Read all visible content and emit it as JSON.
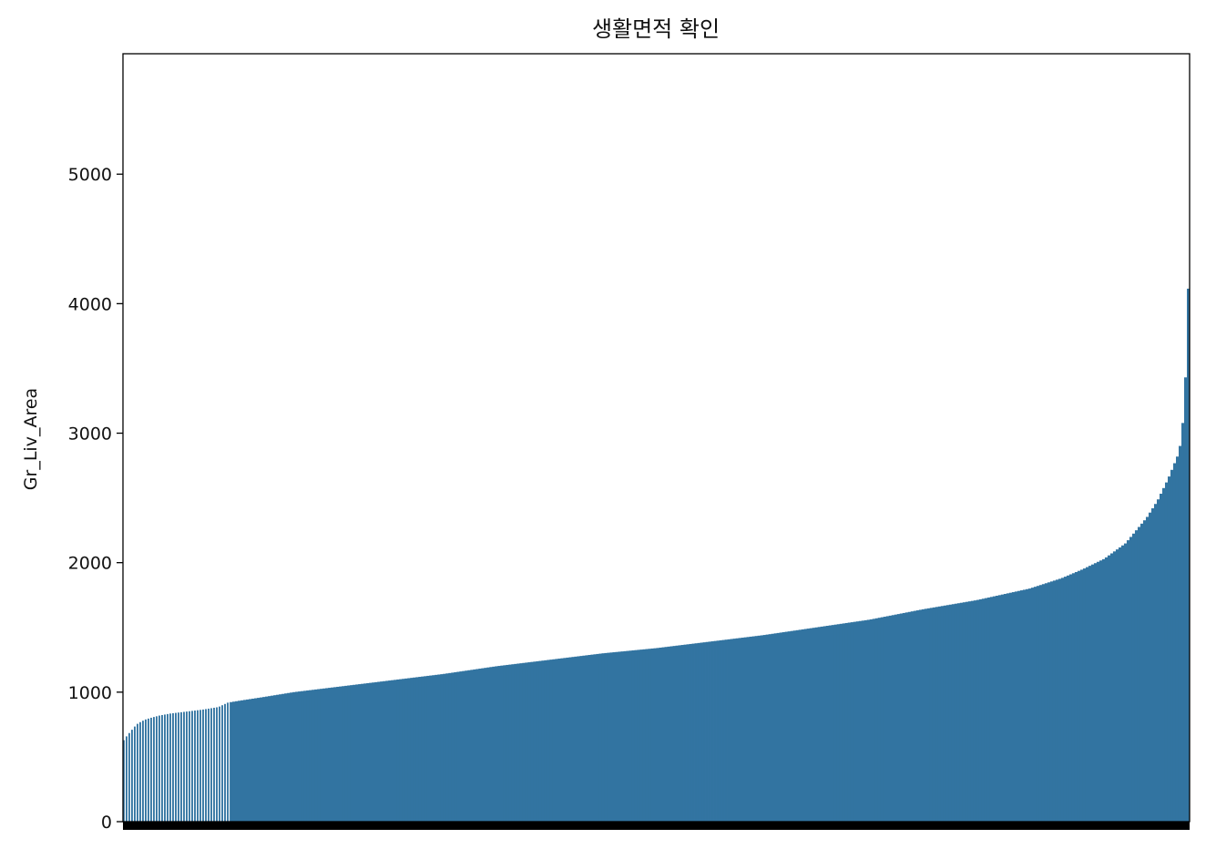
{
  "chart_data": {
    "type": "bar",
    "title": "생활면적 확인",
    "xlabel": "",
    "ylabel": "Gr_Liv_Area",
    "ylim": [
      0,
      5930
    ],
    "yticks": [
      0,
      1000,
      2000,
      3000,
      4000,
      5000
    ],
    "bar_color": "#3274a1",
    "sorted": "ascending",
    "xtick_labels_visible": false,
    "grid": false,
    "legend": "none",
    "profile": [
      [
        0.0,
        610
      ],
      [
        0.002,
        640
      ],
      [
        0.005,
        670
      ],
      [
        0.008,
        700
      ],
      [
        0.011,
        730
      ],
      [
        0.014,
        755
      ],
      [
        0.018,
        775
      ],
      [
        0.022,
        790
      ],
      [
        0.028,
        805
      ],
      [
        0.035,
        820
      ],
      [
        0.045,
        835
      ],
      [
        0.06,
        850
      ],
      [
        0.075,
        865
      ],
      [
        0.09,
        885
      ],
      [
        0.099,
        920
      ],
      [
        0.11,
        935
      ],
      [
        0.13,
        960
      ],
      [
        0.16,
        1000
      ],
      [
        0.2,
        1040
      ],
      [
        0.25,
        1090
      ],
      [
        0.3,
        1140
      ],
      [
        0.35,
        1200
      ],
      [
        0.4,
        1250
      ],
      [
        0.45,
        1300
      ],
      [
        0.5,
        1340
      ],
      [
        0.55,
        1390
      ],
      [
        0.6,
        1440
      ],
      [
        0.65,
        1500
      ],
      [
        0.7,
        1560
      ],
      [
        0.75,
        1640
      ],
      [
        0.8,
        1710
      ],
      [
        0.85,
        1800
      ],
      [
        0.88,
        1880
      ],
      [
        0.9,
        1950
      ],
      [
        0.92,
        2030
      ],
      [
        0.94,
        2150
      ],
      [
        0.96,
        2350
      ],
      [
        0.97,
        2480
      ],
      [
        0.98,
        2650
      ],
      [
        0.99,
        2850
      ],
      [
        0.993,
        3000
      ],
      [
        0.996,
        3400
      ],
      [
        0.998,
        3800
      ],
      [
        1.0,
        4680
      ]
    ]
  }
}
